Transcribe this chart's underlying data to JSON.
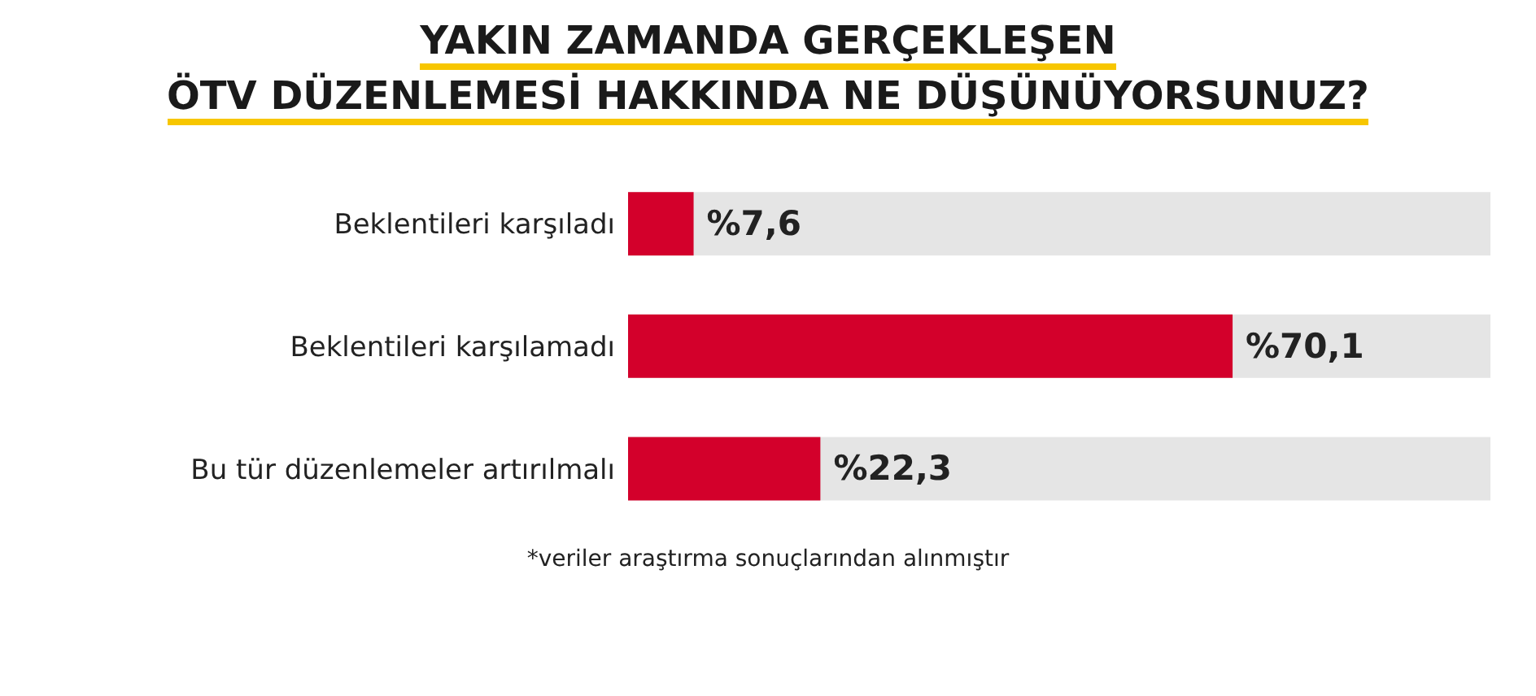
{
  "chart_data": {
    "type": "bar",
    "orientation": "horizontal",
    "title": "YAKIN ZAMANDA GERÇEKLEŞEN\nÖTV DÜZENLEMESİ HAKKINDA NE DÜŞÜNÜYORSUNUZ?",
    "categories": [
      "Beklentileri karşıladı",
      "Beklentileri karşılamadı",
      "Bu tür düzenlemeler artırılmalı"
    ],
    "values": [
      7.6,
      70.1,
      22.3
    ],
    "value_labels": [
      "%7,6",
      "%70,1",
      "%22,3"
    ],
    "color": "#d3002b",
    "xlim": [
      0,
      100
    ],
    "tick_labels": "y",
    "annotations": [
      "*veriler araştırma sonuçlarından alınmıştır"
    ]
  }
}
